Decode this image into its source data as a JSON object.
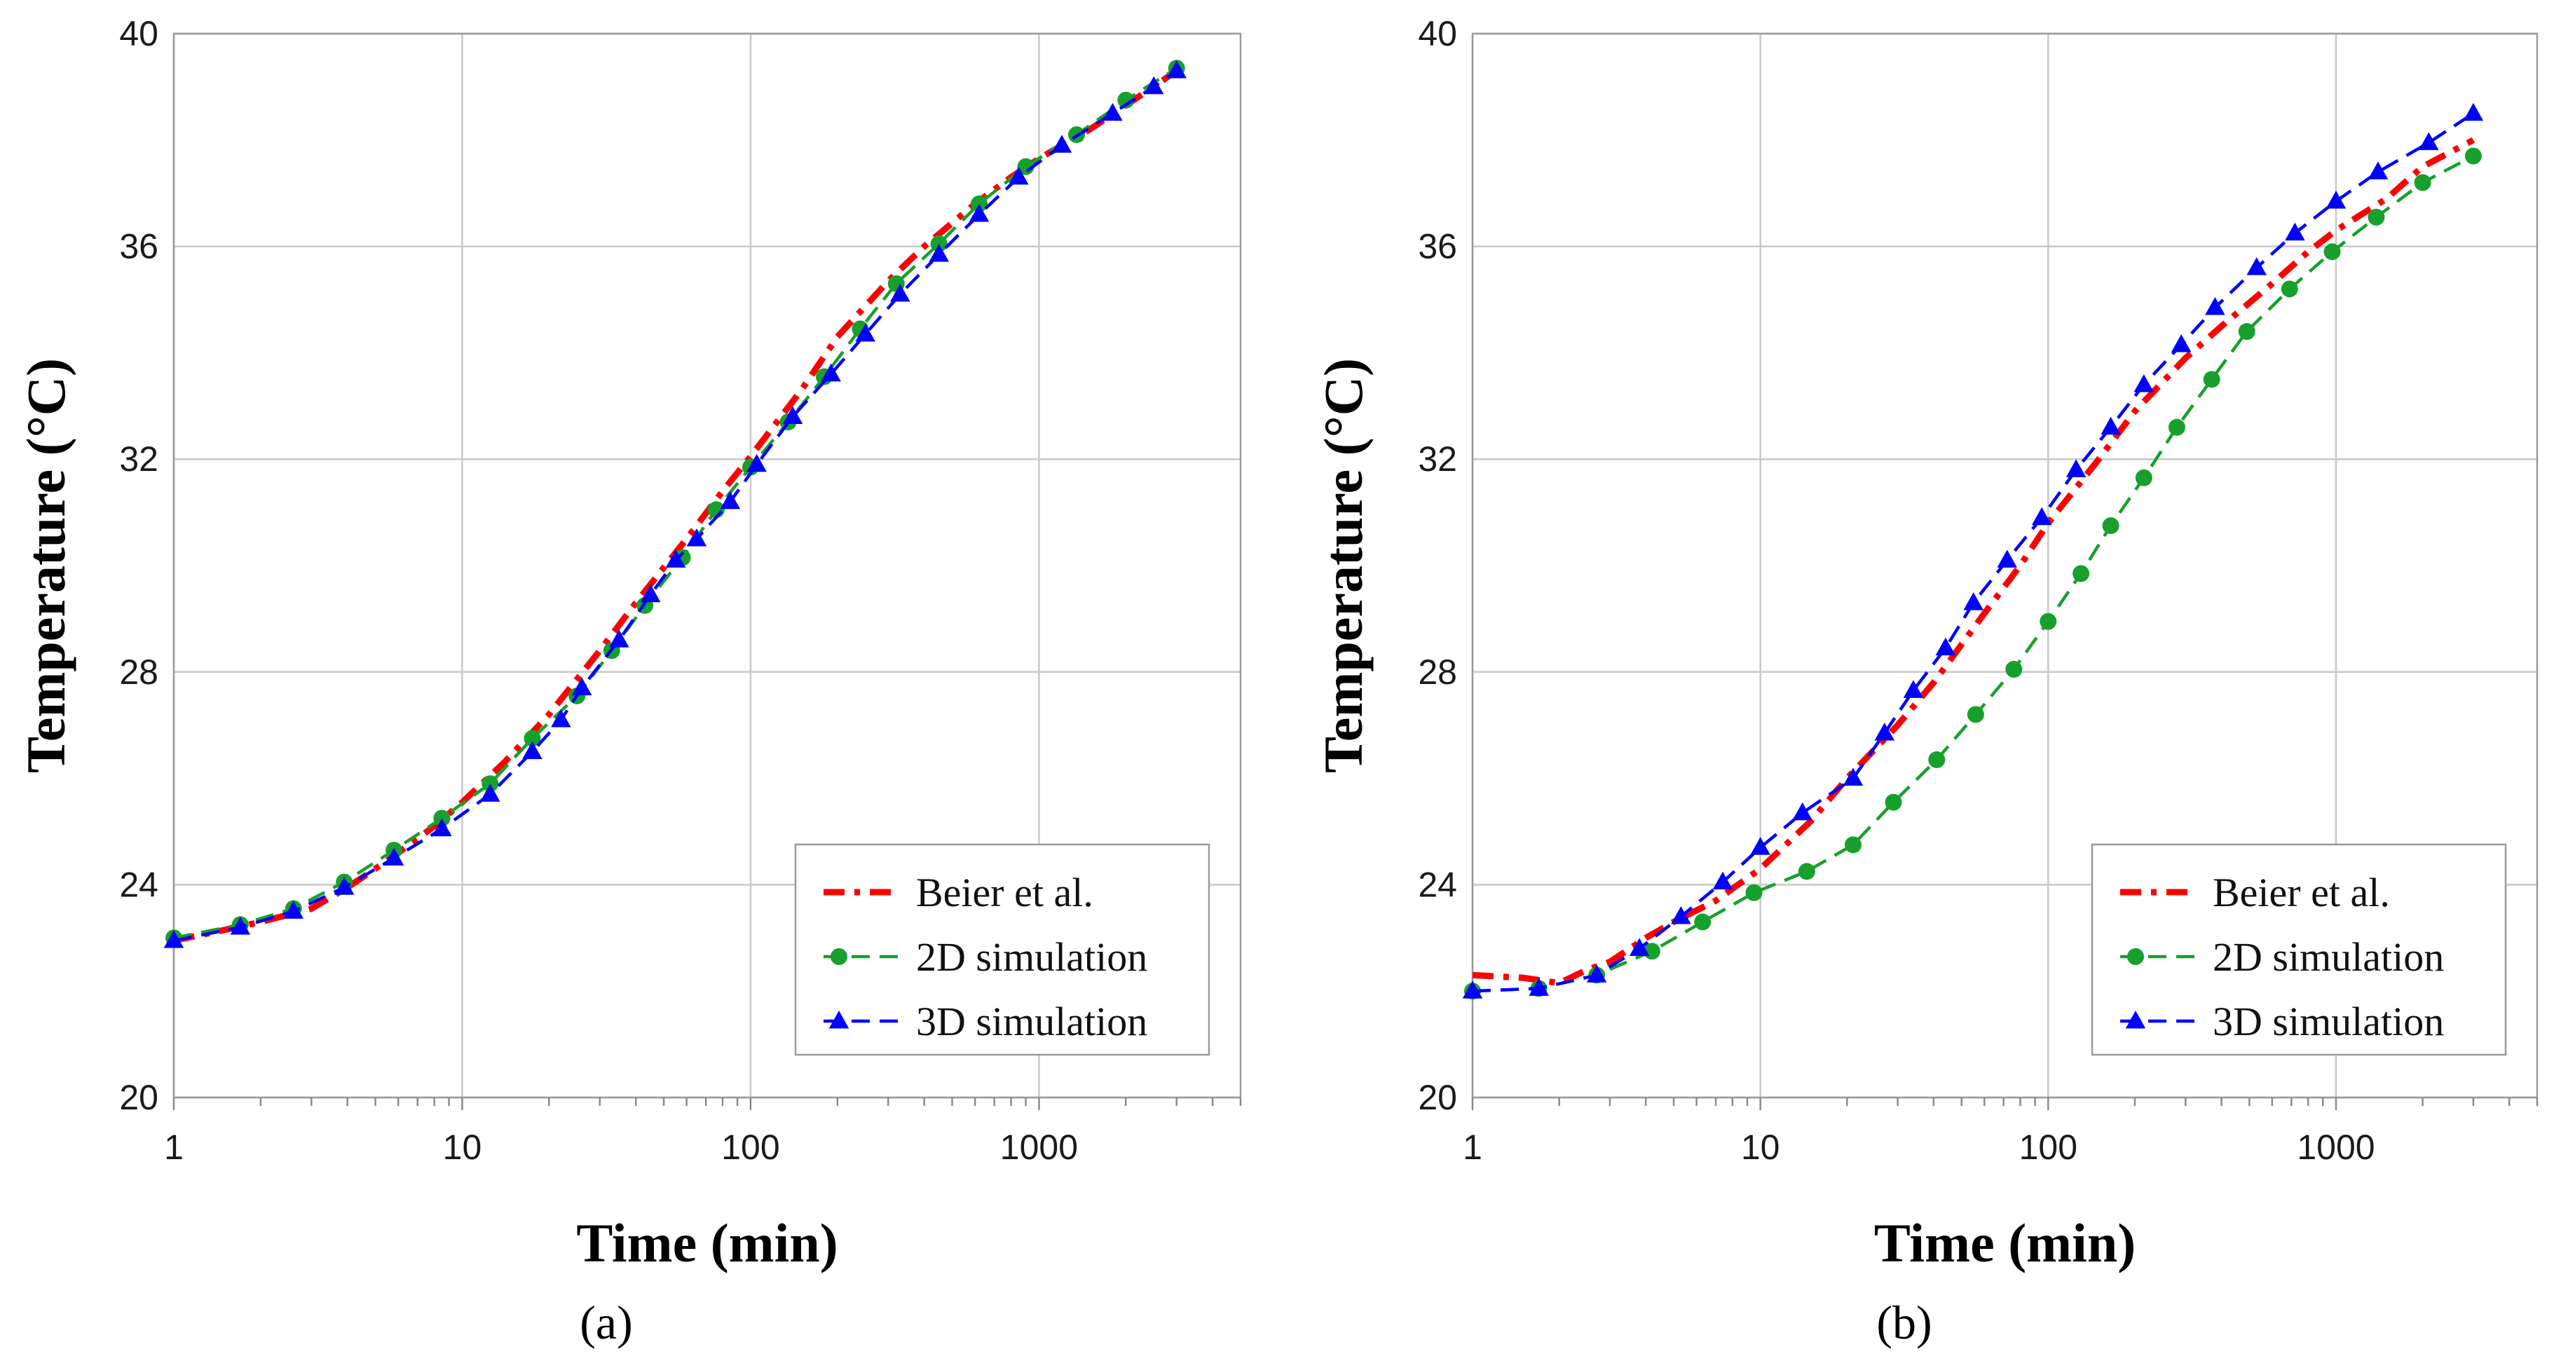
{
  "chart_data": [
    {
      "type": "line",
      "panel_label": "(a)",
      "xlabel": "Time (min)",
      "ylabel": "Temperature (°C)",
      "xscale": "log",
      "xlim": [
        1,
        5000
      ],
      "ylim": [
        20,
        40
      ],
      "xticks": [
        "1",
        "10",
        "100",
        "1000"
      ],
      "yticks": [
        "20",
        "24",
        "28",
        "32",
        "36",
        "40"
      ],
      "grid": true,
      "legend_position": "bottom-right",
      "series": [
        {
          "name": "Beier et al.",
          "color": "#ff0000",
          "style": "dash-dot",
          "marker": "none",
          "x": [
            1,
            1.5,
            2,
            3,
            4,
            5,
            6,
            8,
            10,
            14,
            20,
            30,
            40,
            60,
            80,
            100,
            150,
            200,
            300,
            400,
            600,
            800,
            1000,
            1500,
            2000,
            3000
          ],
          "y": [
            22.95,
            23.15,
            23.3,
            23.55,
            23.95,
            24.3,
            24.6,
            25.1,
            25.55,
            26.3,
            27.2,
            28.4,
            29.3,
            30.5,
            31.4,
            32.05,
            33.3,
            34.3,
            35.35,
            36.0,
            36.8,
            37.3,
            37.65,
            38.2,
            38.65,
            39.3
          ]
        },
        {
          "name": "2D simulation",
          "color": "#17a02c",
          "style": "dash",
          "marker": "circle",
          "x": [
            1,
            1.7,
            2.6,
            3.9,
            5.8,
            8.5,
            12.5,
            17.5,
            25,
            33,
            43,
            58,
            76,
            100,
            135,
            180,
            240,
            320,
            450,
            620,
            900,
            1350,
            2000,
            3000
          ],
          "y": [
            23.0,
            23.25,
            23.55,
            24.05,
            24.65,
            25.25,
            25.9,
            26.75,
            27.55,
            28.4,
            29.25,
            30.15,
            31.05,
            31.85,
            32.7,
            33.55,
            34.45,
            35.3,
            36.05,
            36.8,
            37.5,
            38.1,
            38.75,
            39.35
          ]
        },
        {
          "name": "3D simulation",
          "color": "#0000ff",
          "style": "dash",
          "marker": "triangle",
          "x": [
            1,
            1.7,
            2.6,
            3.9,
            5.8,
            8.5,
            12.5,
            17.5,
            22,
            26,
            35,
            45,
            55,
            65,
            85,
            105,
            140,
            190,
            250,
            330,
            450,
            620,
            850,
            1200,
            1800,
            2500,
            3000
          ],
          "y": [
            22.95,
            23.2,
            23.5,
            23.95,
            24.5,
            25.05,
            25.7,
            26.5,
            27.1,
            27.7,
            28.6,
            29.45,
            30.1,
            30.5,
            31.2,
            31.9,
            32.8,
            33.6,
            34.35,
            35.1,
            35.85,
            36.6,
            37.3,
            37.9,
            38.5,
            39.0,
            39.3
          ]
        }
      ]
    },
    {
      "type": "line",
      "panel_label": "(b)",
      "xlabel": "Time (min)",
      "ylabel": "Temperature (°C)",
      "xscale": "log",
      "xlim": [
        1,
        5000
      ],
      "ylim": [
        20,
        40
      ],
      "xticks": [
        "1",
        "10",
        "100",
        "1000"
      ],
      "yticks": [
        "20",
        "24",
        "28",
        "32",
        "36",
        "40"
      ],
      "grid": true,
      "legend_position": "bottom-right",
      "series": [
        {
          "name": "Beier et al.",
          "color": "#ff0000",
          "style": "dash-dot",
          "marker": "none",
          "x": [
            1,
            1.5,
            2,
            2.5,
            3,
            4,
            5,
            7,
            10,
            15,
            20,
            30,
            40,
            60,
            80,
            100,
            150,
            200,
            300,
            400,
            600,
            800,
            1000,
            1500,
            2000,
            3000
          ],
          "y": [
            22.3,
            22.25,
            22.15,
            22.4,
            22.55,
            23.0,
            23.3,
            23.7,
            24.3,
            25.2,
            26.0,
            27.0,
            27.8,
            29.1,
            30.0,
            30.8,
            32.0,
            32.9,
            33.9,
            34.5,
            35.3,
            35.9,
            36.3,
            36.9,
            37.5,
            38.0
          ]
        },
        {
          "name": "2D simulation",
          "color": "#17a02c",
          "style": "dash",
          "marker": "circle",
          "x": [
            1,
            1.7,
            2.7,
            4.2,
            6.3,
            9.5,
            14.5,
            21,
            29,
            41,
            56,
            76,
            100,
            130,
            165,
            215,
            280,
            370,
            490,
            690,
            970,
            1380,
            2000,
            3000
          ],
          "y": [
            22.0,
            22.05,
            22.3,
            22.75,
            23.3,
            23.85,
            24.25,
            24.75,
            25.55,
            26.35,
            27.2,
            28.05,
            28.95,
            29.85,
            30.75,
            31.65,
            32.6,
            33.5,
            34.4,
            35.2,
            35.9,
            36.55,
            37.2,
            37.7
          ]
        },
        {
          "name": "3D simulation",
          "color": "#0000ff",
          "style": "dash",
          "marker": "triangle",
          "x": [
            1,
            1.7,
            2.7,
            3.8,
            5.3,
            7.4,
            10,
            14,
            21,
            27,
            34,
            44,
            55,
            72,
            95,
            125,
            165,
            215,
            290,
            380,
            530,
            720,
            1000,
            1400,
            2100,
            3000
          ],
          "y": [
            22.0,
            22.05,
            22.3,
            22.8,
            23.4,
            24.05,
            24.7,
            25.35,
            26.0,
            26.85,
            27.65,
            28.45,
            29.3,
            30.1,
            30.9,
            31.8,
            32.6,
            33.4,
            34.15,
            34.85,
            35.6,
            36.25,
            36.85,
            37.4,
            37.95,
            38.5
          ]
        }
      ]
    }
  ]
}
